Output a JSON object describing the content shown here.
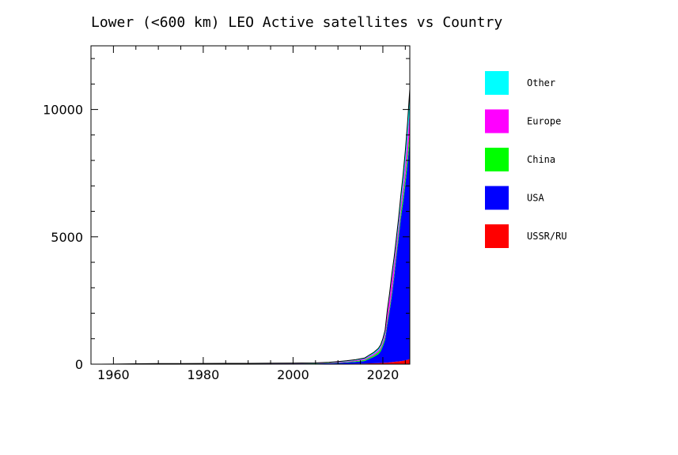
{
  "chart_data": {
    "type": "area",
    "stacked": true,
    "title": "Lower (<600 km) LEO Active satellites vs Country",
    "xlabel": "",
    "ylabel": "",
    "xlim": [
      1955,
      2026
    ],
    "ylim": [
      0,
      12500
    ],
    "x_ticks": [
      1960,
      1980,
      2000,
      2020
    ],
    "y_ticks": [
      0,
      5000,
      10000
    ],
    "grid": false,
    "legend_position": "right",
    "x": [
      1957,
      1960,
      1965,
      1970,
      1975,
      1980,
      1985,
      1990,
      1995,
      2000,
      2005,
      2008,
      2010,
      2012,
      2014,
      2016,
      2017,
      2018,
      2019,
      2019.5,
      2020,
      2020.5,
      2021,
      2021.5,
      2022,
      2022.5,
      2023,
      2023.5,
      2024,
      2024.5,
      2025,
      2025.5,
      2026
    ],
    "series": [
      {
        "name": "USSR/RU",
        "color": "#ff0000",
        "values": [
          1,
          3,
          10,
          15,
          15,
          15,
          15,
          12,
          12,
          10,
          10,
          10,
          12,
          15,
          20,
          25,
          30,
          35,
          40,
          45,
          50,
          55,
          60,
          70,
          80,
          90,
          100,
          110,
          120,
          130,
          150,
          170,
          200
        ]
      },
      {
        "name": "USA",
        "color": "#0000ff",
        "values": [
          0,
          2,
          5,
          8,
          8,
          8,
          8,
          8,
          10,
          12,
          15,
          25,
          35,
          50,
          70,
          100,
          180,
          250,
          350,
          450,
          650,
          900,
          1500,
          2000,
          2600,
          3300,
          4100,
          4800,
          5600,
          6200,
          6900,
          7700,
          8600
        ]
      },
      {
        "name": "China",
        "color": "#00ff00",
        "values": [
          0,
          0,
          0,
          0,
          0,
          1,
          2,
          3,
          5,
          5,
          5,
          10,
          15,
          20,
          30,
          40,
          50,
          60,
          80,
          90,
          100,
          110,
          130,
          140,
          160,
          170,
          190,
          220,
          250,
          280,
          320,
          360,
          400
        ]
      },
      {
        "name": "Europe",
        "color": "#ff00ff",
        "values": [
          0,
          0,
          0,
          0,
          1,
          2,
          3,
          5,
          5,
          8,
          10,
          15,
          20,
          25,
          30,
          40,
          50,
          60,
          70,
          80,
          100,
          150,
          300,
          400,
          500,
          400,
          300,
          300,
          300,
          400,
          500,
          650,
          800
        ]
      },
      {
        "name": "Other",
        "color": "#00ffff",
        "values": [
          0,
          0,
          0,
          0,
          0,
          1,
          2,
          3,
          5,
          8,
          10,
          15,
          20,
          25,
          30,
          40,
          50,
          60,
          80,
          90,
          100,
          120,
          150,
          170,
          200,
          220,
          250,
          300,
          350,
          420,
          500,
          600,
          800
        ]
      }
    ]
  }
}
